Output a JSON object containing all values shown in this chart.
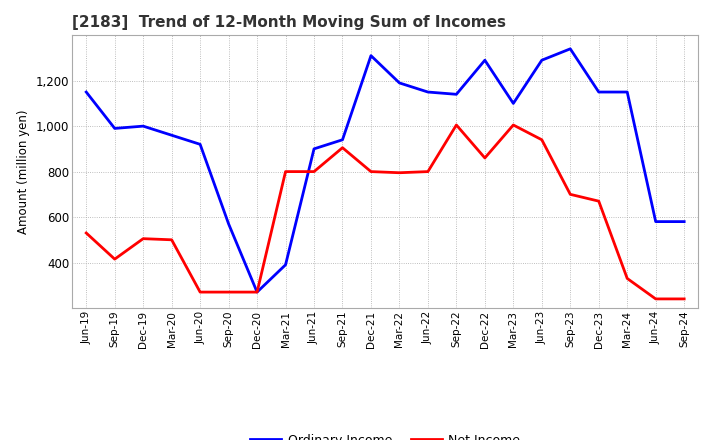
{
  "title": "[2183]  Trend of 12-Month Moving Sum of Incomes",
  "ylabel": "Amount (million yen)",
  "x_labels": [
    "Jun-19",
    "Sep-19",
    "Dec-19",
    "Mar-20",
    "Jun-20",
    "Sep-20",
    "Dec-20",
    "Mar-21",
    "Jun-21",
    "Sep-21",
    "Dec-21",
    "Mar-22",
    "Jun-22",
    "Sep-22",
    "Dec-22",
    "Mar-23",
    "Jun-23",
    "Sep-23",
    "Dec-23",
    "Mar-24",
    "Jun-24",
    "Sep-24"
  ],
  "ordinary_income": [
    1150,
    990,
    1000,
    960,
    920,
    570,
    270,
    390,
    900,
    940,
    1310,
    1190,
    1150,
    1140,
    1290,
    1100,
    1290,
    1340,
    1150,
    1150,
    580,
    580
  ],
  "net_income": [
    530,
    415,
    505,
    500,
    270,
    270,
    270,
    800,
    800,
    905,
    800,
    795,
    800,
    1005,
    860,
    1005,
    940,
    700,
    670,
    330,
    240,
    240
  ],
  "ordinary_income_color": "#0000FF",
  "net_income_color": "#FF0000",
  "ylim_min": 200,
  "ylim_max": 1400,
  "yticks": [
    400,
    600,
    800,
    1000,
    1200
  ],
  "background_color": "#FFFFFF",
  "plot_bg_color": "#FFFFFF",
  "grid_color": "#AAAAAA",
  "line_width": 2.0,
  "title_fontsize": 11,
  "legend_labels": [
    "Ordinary Income",
    "Net Income"
  ]
}
